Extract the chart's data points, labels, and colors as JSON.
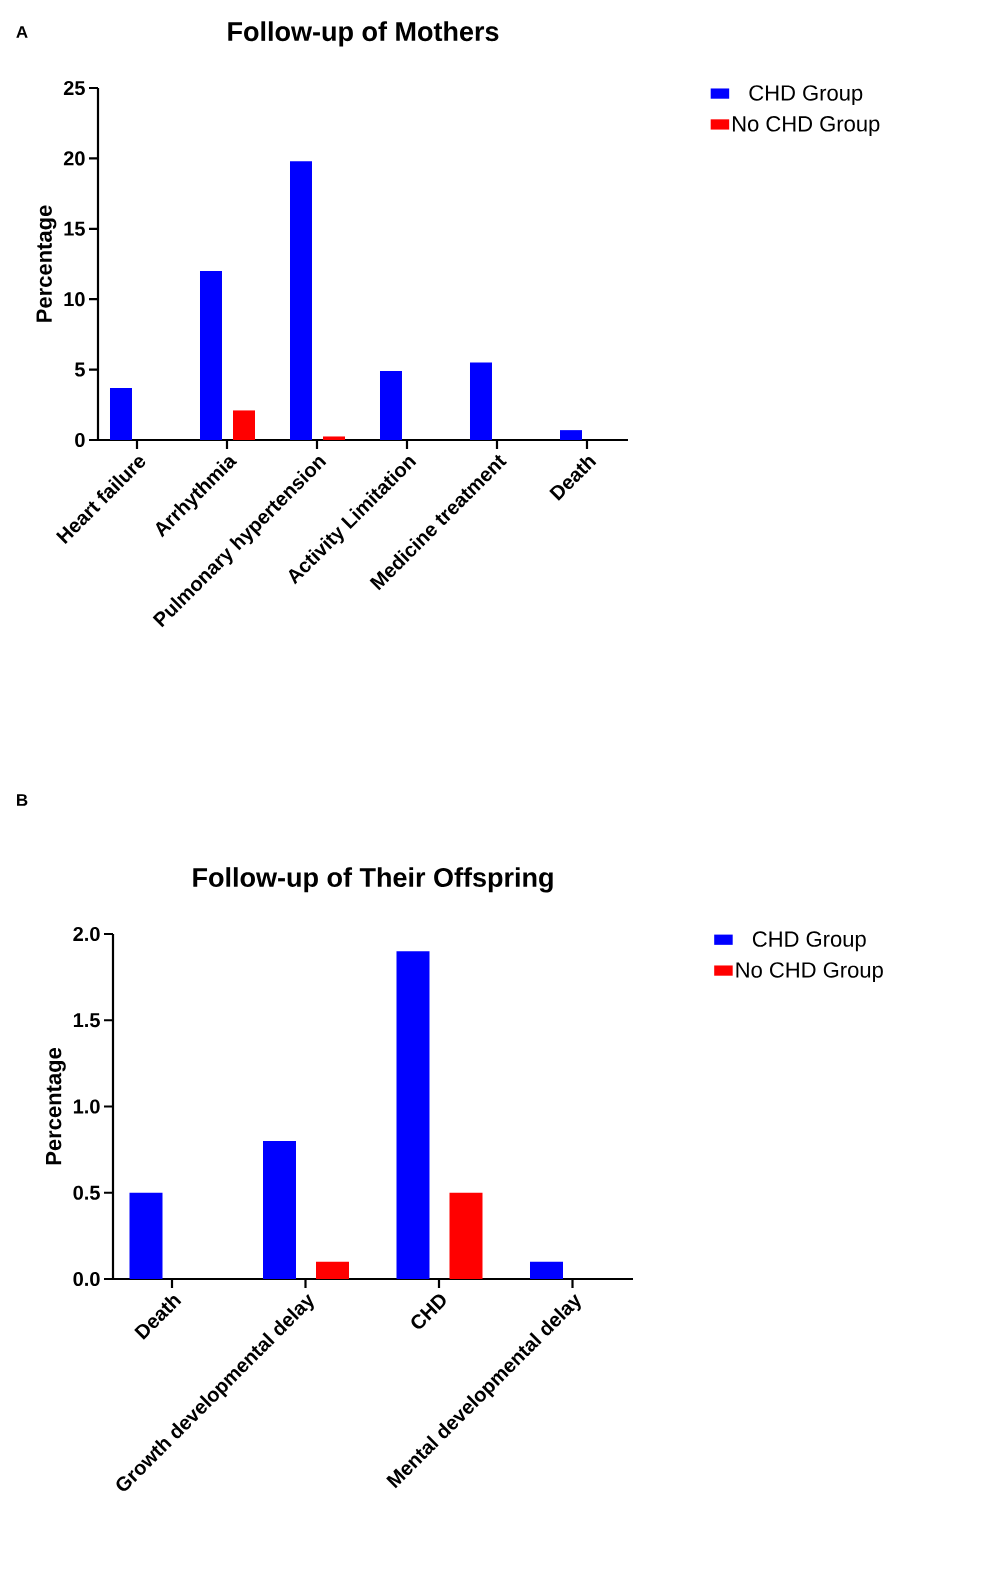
{
  "chart_data": [
    {
      "type": "bar",
      "title": "Follow-up of Mothers",
      "ylabel": "Percentage",
      "annotations": [
        "A"
      ],
      "legend": "top right",
      "categories": [
        "Heart failure",
        "Arrhythmia",
        "Pulmonary hypertension",
        "Activity Limitation",
        "Medicine treatment",
        "Death"
      ],
      "series": [
        {
          "name": "CHD Group",
          "color": "#0000ff",
          "values": [
            3.7,
            12,
            19.8,
            4.9,
            5.5,
            0.7
          ]
        },
        {
          "name": "No CHD Group",
          "color": "#ff0000",
          "values": [
            0,
            2.1,
            0.25,
            0,
            0,
            0
          ]
        }
      ],
      "ylim": [
        0,
        25
      ],
      "yticks": [
        0,
        5,
        10,
        15,
        20,
        25
      ]
    },
    {
      "type": "bar",
      "title": "Follow-up of Their Offspring",
      "ylabel": "Percentage",
      "annotations": [
        "B"
      ],
      "legend": "top right",
      "categories": [
        "Death",
        "Growth developmental delay",
        "CHD",
        "Mental developmental delay"
      ],
      "series": [
        {
          "name": "CHD Group",
          "color": "#0000ff",
          "values": [
            0.5,
            0.8,
            1.9,
            0.1
          ]
        },
        {
          "name": "No CHD Group",
          "color": "#ff0000",
          "values": [
            0,
            0.1,
            0.5,
            0
          ]
        }
      ],
      "ylim": [
        0,
        2.0
      ],
      "yticks": [
        {
          "value": 0,
          "label": "0.0"
        },
        {
          "value": 0.5,
          "label": "0.5"
        },
        {
          "value": 1.0,
          "label": "1.0"
        },
        {
          "value": 1.5,
          "label": "1.5"
        },
        {
          "value": 2.0,
          "label": "2.0"
        }
      ]
    }
  ]
}
